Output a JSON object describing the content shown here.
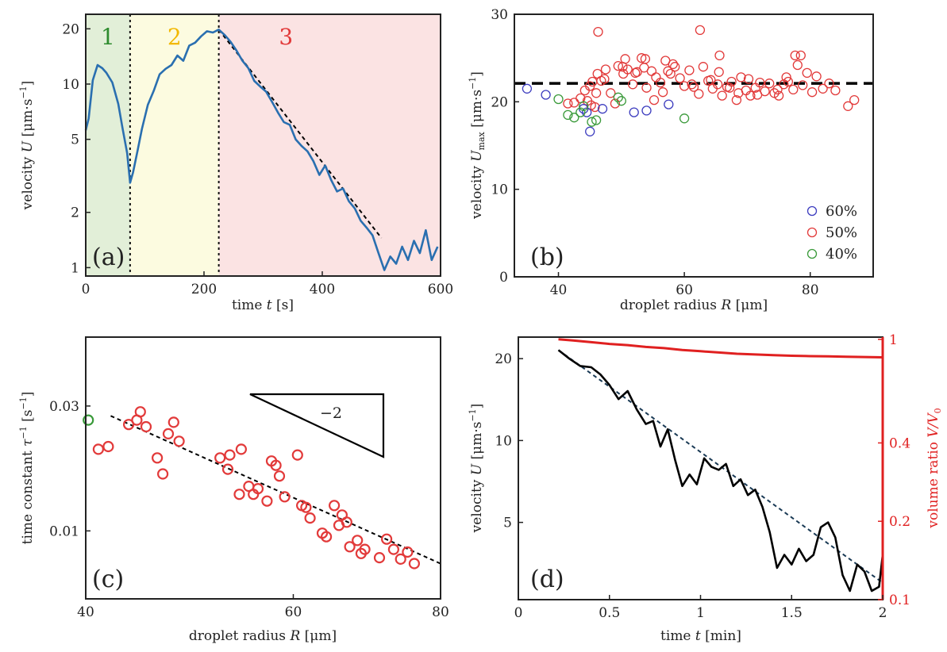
{
  "chart_data": [
    {
      "panel": "(a)",
      "type": "line",
      "xlabel": "time t [s]",
      "ylabel": "velocity U [μm·s⁻¹]",
      "xlim": [
        0,
        600
      ],
      "ylim": [
        0.9,
        24
      ],
      "yscale": "log",
      "xticks": [
        0,
        200,
        400,
        600
      ],
      "yticks": [
        1,
        2,
        5,
        10,
        20
      ],
      "regions": [
        {
          "label": "1",
          "x": [
            0,
            75
          ],
          "fill": "#e2efd8",
          "text_color": "#2e8b2e"
        },
        {
          "label": "2",
          "x": [
            75,
            225
          ],
          "fill": "#fcfbe0",
          "text_color": "#f2b800"
        },
        {
          "label": "3",
          "x": [
            225,
            600
          ],
          "fill": "#fbe3e3",
          "text_color": "#e23a3a"
        }
      ],
      "series": [
        {
          "color": "#2a6fb0",
          "x": [
            0,
            5,
            12,
            20,
            28,
            35,
            45,
            55,
            62,
            70,
            75,
            80,
            88,
            95,
            105,
            115,
            125,
            135,
            145,
            155,
            165,
            175,
            185,
            195,
            205,
            215,
            225,
            235,
            245,
            255,
            265,
            275,
            285,
            295,
            305,
            315,
            325,
            335,
            345,
            355,
            365,
            375,
            385,
            395,
            405,
            415,
            425,
            435,
            445,
            455,
            465,
            475,
            485,
            495,
            505,
            515,
            525,
            535,
            545,
            555,
            565,
            575,
            585,
            595
          ],
          "y": [
            5.6,
            6.5,
            10.5,
            12.7,
            12.2,
            11.5,
            10.2,
            7.8,
            5.8,
            4.2,
            2.9,
            3.3,
            4.4,
            5.7,
            7.7,
            9.2,
            11.3,
            12.1,
            12.7,
            14.3,
            13.4,
            16.2,
            16.8,
            18.2,
            19.4,
            19.1,
            19.8,
            18.5,
            17.0,
            15.2,
            13.4,
            12.2,
            10.4,
            9.7,
            9.1,
            8.0,
            7.0,
            6.2,
            6.0,
            5.0,
            4.6,
            4.3,
            3.8,
            3.2,
            3.6,
            3.0,
            2.6,
            2.7,
            2.3,
            2.1,
            1.8,
            1.65,
            1.5,
            1.2,
            0.97,
            1.15,
            1.05,
            1.3,
            1.1,
            1.4,
            1.2,
            1.6,
            1.1,
            1.3
          ]
        }
      ],
      "fit": {
        "style": "dashed",
        "color": "#000000",
        "x": [
          225,
          500
        ],
        "y": [
          19.8,
          1.45
        ]
      },
      "vlines": [
        75,
        225
      ]
    },
    {
      "panel": "(b)",
      "type": "scatter",
      "xlabel": "droplet radius R [μm]",
      "ylabel": "velocity U_max [μm·s⁻¹]",
      "xlim": [
        33,
        90
      ],
      "ylim": [
        0,
        30
      ],
      "xticks": [
        40,
        60,
        80
      ],
      "yticks": [
        0,
        10,
        20,
        30
      ],
      "hline": {
        "y": 22.1,
        "style": "dashed",
        "color": "#000000"
      },
      "legend": "bottom-right",
      "series": [
        {
          "name": "60%",
          "color": "#3d3dbf",
          "x": [
            35,
            38,
            44,
            44.5,
            45,
            47,
            52,
            54,
            57.5
          ],
          "y": [
            21.5,
            20.8,
            19.2,
            18.8,
            16.6,
            19.2,
            18.8,
            19.0,
            19.7
          ]
        },
        {
          "name": "50%",
          "color": "#e23a3a",
          "x": [
            41.5,
            42.5,
            43.5,
            44.2,
            44.6,
            45,
            45.4,
            45.8,
            46.2,
            46.8,
            47.5,
            48.3,
            49.5,
            50.3,
            51,
            51.8,
            52.5,
            53.2,
            54,
            54.8,
            55.5,
            56.2,
            57,
            57.8,
            58.5,
            59.3,
            60,
            60.8,
            61.5,
            62.3,
            63,
            63.8,
            64.5,
            65.3,
            66,
            66.8,
            67.5,
            68.3,
            69,
            69.8,
            70.5,
            71.3,
            72,
            72.8,
            73.5,
            74.3,
            75,
            75.8,
            76.5,
            77.3,
            78,
            78.8,
            79.5,
            80.3,
            81,
            82,
            83,
            84,
            86,
            87,
            45.2,
            46,
            47.3,
            49,
            50.6,
            52.2,
            53.6,
            55.2,
            56.6,
            58.2,
            61.2,
            64.2,
            65.6,
            67.2,
            68.6,
            70.2,
            71.6,
            74.8,
            76.2,
            77.6,
            78.5,
            50.2,
            53.8,
            57.4,
            62.5,
            65.5,
            46.3
          ],
          "y": [
            19.8,
            19.9,
            20.4,
            21.3,
            20.1,
            21.8,
            22.3,
            19.4,
            23.2,
            22.4,
            23.7,
            21.0,
            24.1,
            23.2,
            23.7,
            22.0,
            23.4,
            25.0,
            21.6,
            23.5,
            22.8,
            22.2,
            24.7,
            23.2,
            24.0,
            22.7,
            21.8,
            23.6,
            21.7,
            20.9,
            24.0,
            22.4,
            21.5,
            22.0,
            20.7,
            21.7,
            22.3,
            20.2,
            22.8,
            21.3,
            20.7,
            21.6,
            22.2,
            21.2,
            22.1,
            21.0,
            20.7,
            22.0,
            22.3,
            21.4,
            24.2,
            21.9,
            23.3,
            21.1,
            22.9,
            21.5,
            22.1,
            21.3,
            19.5,
            20.2,
            19.6,
            21.0,
            22.6,
            19.8,
            24.9,
            23.3,
            23.9,
            20.2,
            21.1,
            24.3,
            22.0,
            22.5,
            25.3,
            21.6,
            21.0,
            22.6,
            20.8,
            21.4,
            22.8,
            25.3,
            25.3,
            24.0,
            24.9,
            23.5,
            28.2,
            23.4,
            28.0
          ]
        },
        {
          "name": "40%",
          "color": "#3a9a3a",
          "x": [
            40,
            41.5,
            42.5,
            43.5,
            44,
            45.3,
            46,
            49.5,
            50,
            60
          ],
          "y": [
            20.3,
            18.5,
            18.2,
            18.8,
            19.5,
            17.7,
            17.9,
            20.5,
            20.1,
            18.1
          ]
        }
      ]
    },
    {
      "panel": "(c)",
      "type": "scatter",
      "xlabel": "droplet radius R [μm]",
      "ylabel": "time constant τ⁻¹ [s⁻¹]",
      "xlim": [
        40,
        80
      ],
      "ylim": [
        0.0055,
        0.055
      ],
      "xscale": "log",
      "yscale": "log",
      "xticks": [
        40,
        60,
        80
      ],
      "yticks": [
        0.01,
        0.03
      ],
      "slope_triangle": {
        "label": "−2"
      },
      "fit": {
        "style": "dashed",
        "color": "#000000",
        "x": [
          42,
          80
        ],
        "y": [
          0.0275,
          0.0075
        ]
      },
      "series": [
        {
          "name": "50%",
          "color": "#e23a3a",
          "x": [
            41,
            41.8,
            43.5,
            44.2,
            44.5,
            45,
            46,
            46.5,
            47,
            47.5,
            48,
            52,
            52.8,
            53,
            54,
            54.2,
            55,
            55.5,
            56,
            57,
            57.5,
            58,
            58.4,
            59,
            60.5,
            61,
            61.5,
            62,
            63.5,
            64,
            65,
            65.6,
            66,
            66.6,
            67,
            68,
            68.5,
            69,
            71,
            72,
            73,
            74,
            75,
            76
          ],
          "y": [
            0.0205,
            0.021,
            0.0255,
            0.0265,
            0.0285,
            0.025,
            0.019,
            0.0165,
            0.0235,
            0.026,
            0.022,
            0.019,
            0.0172,
            0.0195,
            0.0138,
            0.0205,
            0.0148,
            0.0138,
            0.0145,
            0.013,
            0.0185,
            0.0178,
            0.0162,
            0.0135,
            0.0195,
            0.0125,
            0.0123,
            0.0112,
            0.0098,
            0.0095,
            0.0125,
            0.0105,
            0.0115,
            0.0108,
            0.0087,
            0.0092,
            0.0082,
            0.0085,
            0.0079,
            0.0093,
            0.0085,
            0.0078,
            0.0083,
            0.0075
          ]
        },
        {
          "name": "40%",
          "color": "#3a9a3a",
          "x": [
            40.2
          ],
          "y": [
            0.0265
          ]
        }
      ]
    },
    {
      "panel": "(d)",
      "type": "line",
      "xlabel": "time t [min]",
      "ylabel": "velocity U [μm·s⁻¹]",
      "ylabel_right": "volume ratio V/V₀",
      "xlim": [
        0,
        2
      ],
      "ylim": [
        2.6,
        24
      ],
      "yscale": "log",
      "ylim_right": [
        0.1,
        1.02
      ],
      "yscale_right": "log",
      "xticks": [
        0,
        0.5,
        1,
        1.5,
        2
      ],
      "xtick_labels": [
        "0",
        "0.5",
        "1",
        "1.5",
        "2"
      ],
      "yticks": [
        5,
        10,
        20
      ],
      "yticks_right": [
        0.1,
        0.2,
        0.4,
        1
      ],
      "right_axis_color": "#e02020",
      "series": [
        {
          "name": "velocity",
          "color": "#000000",
          "axis": "left",
          "x": [
            0.22,
            0.28,
            0.34,
            0.4,
            0.45,
            0.5,
            0.55,
            0.6,
            0.65,
            0.7,
            0.74,
            0.78,
            0.82,
            0.86,
            0.9,
            0.94,
            0.98,
            1.02,
            1.06,
            1.1,
            1.14,
            1.18,
            1.22,
            1.26,
            1.3,
            1.34,
            1.38,
            1.42,
            1.46,
            1.5,
            1.54,
            1.58,
            1.62,
            1.66,
            1.7,
            1.74,
            1.78,
            1.82,
            1.86,
            1.9,
            1.94,
            1.98,
            2.0
          ],
          "y": [
            21.5,
            20.0,
            18.8,
            18.6,
            17.5,
            16.0,
            14.2,
            15.2,
            13.0,
            11.5,
            11.8,
            9.5,
            11.0,
            8.5,
            6.8,
            7.5,
            6.9,
            8.6,
            8.0,
            7.8,
            8.2,
            6.8,
            7.2,
            6.3,
            6.6,
            5.7,
            4.6,
            3.4,
            3.8,
            3.5,
            4.0,
            3.6,
            3.8,
            4.8,
            5.0,
            4.4,
            3.2,
            2.8,
            3.5,
            3.3,
            2.8,
            2.9,
            3.8
          ]
        },
        {
          "name": "volume",
          "color": "#e02020",
          "axis": "right",
          "x": [
            0.22,
            0.3,
            0.4,
            0.5,
            0.6,
            0.7,
            0.8,
            0.9,
            1.0,
            1.1,
            1.2,
            1.3,
            1.4,
            1.5,
            1.6,
            1.7,
            1.8,
            1.9,
            2.0
          ],
          "y": [
            1.0,
            0.99,
            0.975,
            0.96,
            0.95,
            0.935,
            0.925,
            0.91,
            0.9,
            0.89,
            0.88,
            0.875,
            0.87,
            0.865,
            0.862,
            0.86,
            0.858,
            0.855,
            0.853
          ]
        }
      ],
      "fit": {
        "style": "dashed",
        "color": "#1a3a55",
        "x": [
          0.22,
          2.0
        ],
        "y": [
          21.5,
          3.0
        ]
      }
    }
  ],
  "labels": {
    "a": {
      "panel": "(a)",
      "ylabel_a": "velocity ",
      "ylabel_b": "U",
      "ylabel_c": " [μm·s",
      "ylabel_d": "−1",
      "ylabel_e": "]",
      "xlabel_a": "time ",
      "xlabel_b": "t",
      "xlabel_c": " [s]"
    },
    "b": {
      "panel": "(b)",
      "ylabel_a": "velocity ",
      "ylabel_b": "U",
      "ylabel_sub": "max",
      "ylabel_c": " [μm·s",
      "ylabel_d": "−1",
      "ylabel_e": "]",
      "xlabel_a": "droplet radius ",
      "xlabel_b": "R",
      "xlabel_c": " [μm]"
    },
    "c": {
      "panel": "(c)",
      "ylabel_a": "time constant ",
      "ylabel_b": "τ",
      "ylabel_c": "−1",
      "ylabel_d": " [s",
      "ylabel_e": "−1",
      "ylabel_f": "]",
      "xlabel_a": "droplet radius ",
      "xlabel_b": "R",
      "xlabel_c": " [μm]"
    },
    "d": {
      "panel": "(d)",
      "ylabel_a": "velocity ",
      "ylabel_b": "U",
      "ylabel_c": " [μm·s",
      "ylabel_d": "−1",
      "ylabel_e": "]",
      "ylabel_r_a": "volume ratio ",
      "ylabel_r_b": "V/V",
      "ylabel_r_c": "0",
      "xlabel_a": "time ",
      "xlabel_b": "t",
      "xlabel_c": " [min]"
    }
  }
}
